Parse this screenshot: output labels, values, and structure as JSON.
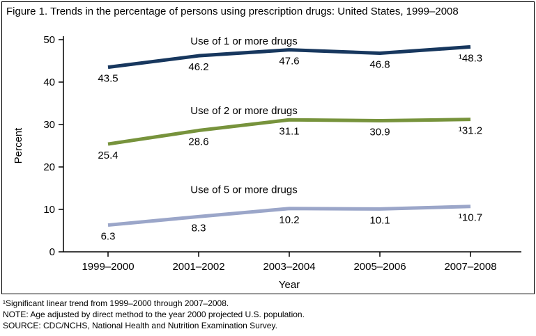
{
  "figure": {
    "title": "Figure 1. Trends in the percentage of persons using prescription drugs: United States, 1999–2008"
  },
  "chart_data": {
    "type": "line",
    "categories": [
      "1999–2000",
      "2001–2002",
      "2003–2004",
      "2005–2006",
      "2007–2008"
    ],
    "series": [
      {
        "name": "Use of 1 or more drugs",
        "values": [
          43.5,
          46.2,
          47.6,
          46.8,
          48.3
        ],
        "point_labels": [
          "43.5",
          "46.2",
          "47.6",
          "46.8",
          "¹48.3"
        ],
        "color": "#17375e"
      },
      {
        "name": "Use of 2 or more drugs",
        "values": [
          25.4,
          28.6,
          31.1,
          30.9,
          31.2
        ],
        "point_labels": [
          "25.4",
          "28.6",
          "31.1",
          "30.9",
          "¹31.2"
        ],
        "color": "#77933c"
      },
      {
        "name": "Use of 5 or more drugs",
        "values": [
          6.3,
          8.3,
          10.2,
          10.1,
          10.7
        ],
        "point_labels": [
          "6.3",
          "8.3",
          "10.2",
          "10.1",
          "¹10.7"
        ],
        "color": "#9ba6c9"
      }
    ],
    "xlabel": "Year",
    "ylabel": "Percent",
    "ylim": [
      0,
      50
    ],
    "yticks": [
      0,
      10,
      20,
      30,
      40,
      50
    ],
    "grid": false,
    "legend_position": "inline-above-lines"
  },
  "footnotes": [
    "¹Significant linear trend from 1999–2000 through 2007–2008.",
    "NOTE: Age adjusted by direct method to the year 2000 projected U.S. population.",
    "SOURCE: CDC/NCHS, National Health and Nutrition Examination Survey."
  ]
}
